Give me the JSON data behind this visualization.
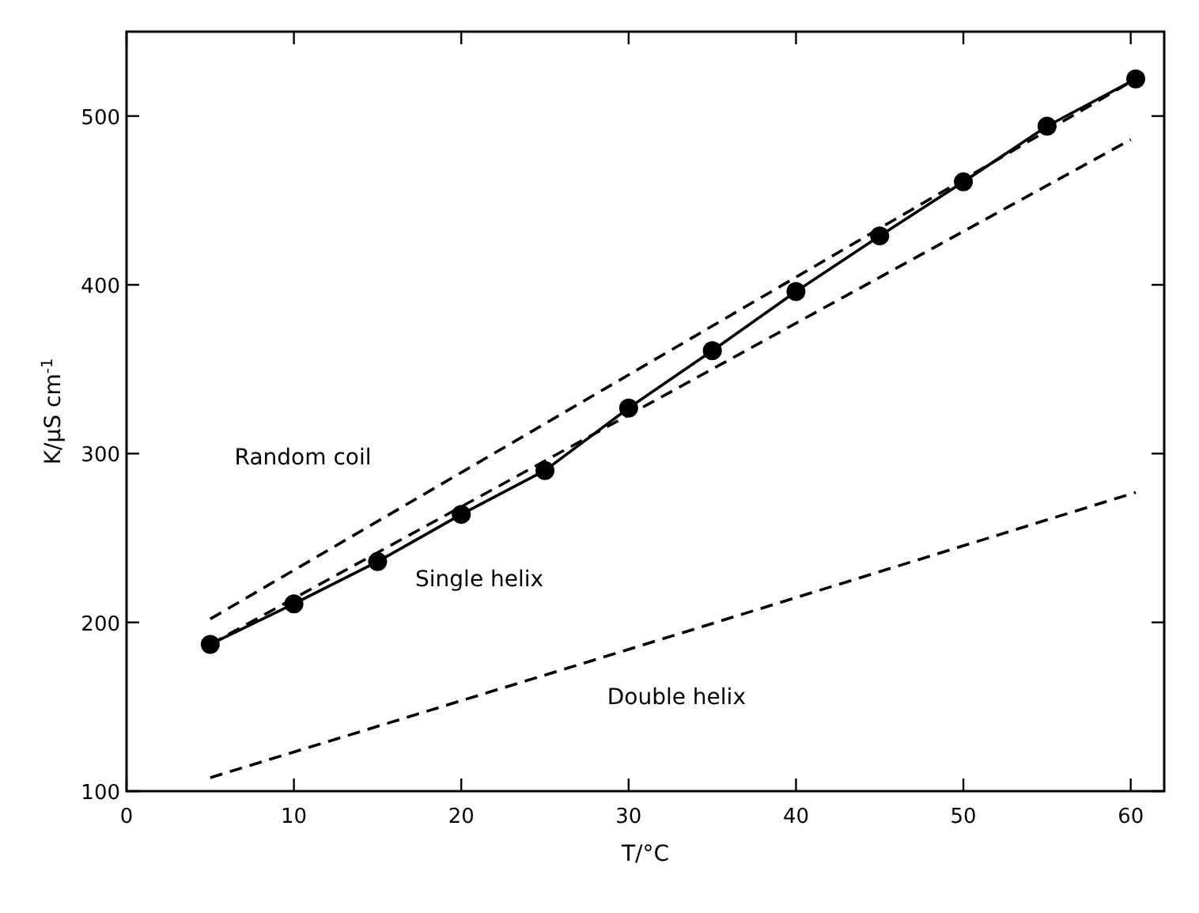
{
  "chart_data": {
    "type": "line",
    "xlabel": "T/°C",
    "ylabel": "K/μS cm$^{-1}$",
    "xlim": [
      0,
      62
    ],
    "ylim": [
      100,
      550
    ],
    "xticks": [
      0,
      10,
      20,
      30,
      40,
      50,
      60
    ],
    "yticks": [
      100,
      200,
      300,
      400,
      500
    ],
    "grid": false,
    "series": [
      {
        "color": "#000000",
        "marker": "circle",
        "line_style": "solid",
        "x": [
          5,
          10,
          15,
          20,
          25,
          30,
          35,
          40,
          45,
          50,
          55,
          60.3
        ],
        "values": [
          187,
          211,
          236,
          264,
          290,
          327,
          361,
          396,
          429,
          461,
          494,
          522
        ]
      },
      {
        "color": "#000000",
        "marker": "none",
        "line_style": "dashed",
        "x": [
          5,
          60.3
        ],
        "values": [
          202,
          522
        ]
      },
      {
        "color": "#000000",
        "marker": "none",
        "line_style": "dashed",
        "x": [
          5,
          60
        ],
        "values": [
          187,
          486
        ]
      },
      {
        "color": "#000000",
        "marker": "none",
        "line_style": "dashed",
        "x": [
          5,
          30,
          60.3
        ],
        "values": [
          108,
          184,
          277
        ]
      }
    ],
    "annotations": [
      "Random coil",
      "Single helix",
      "Double helix"
    ]
  }
}
